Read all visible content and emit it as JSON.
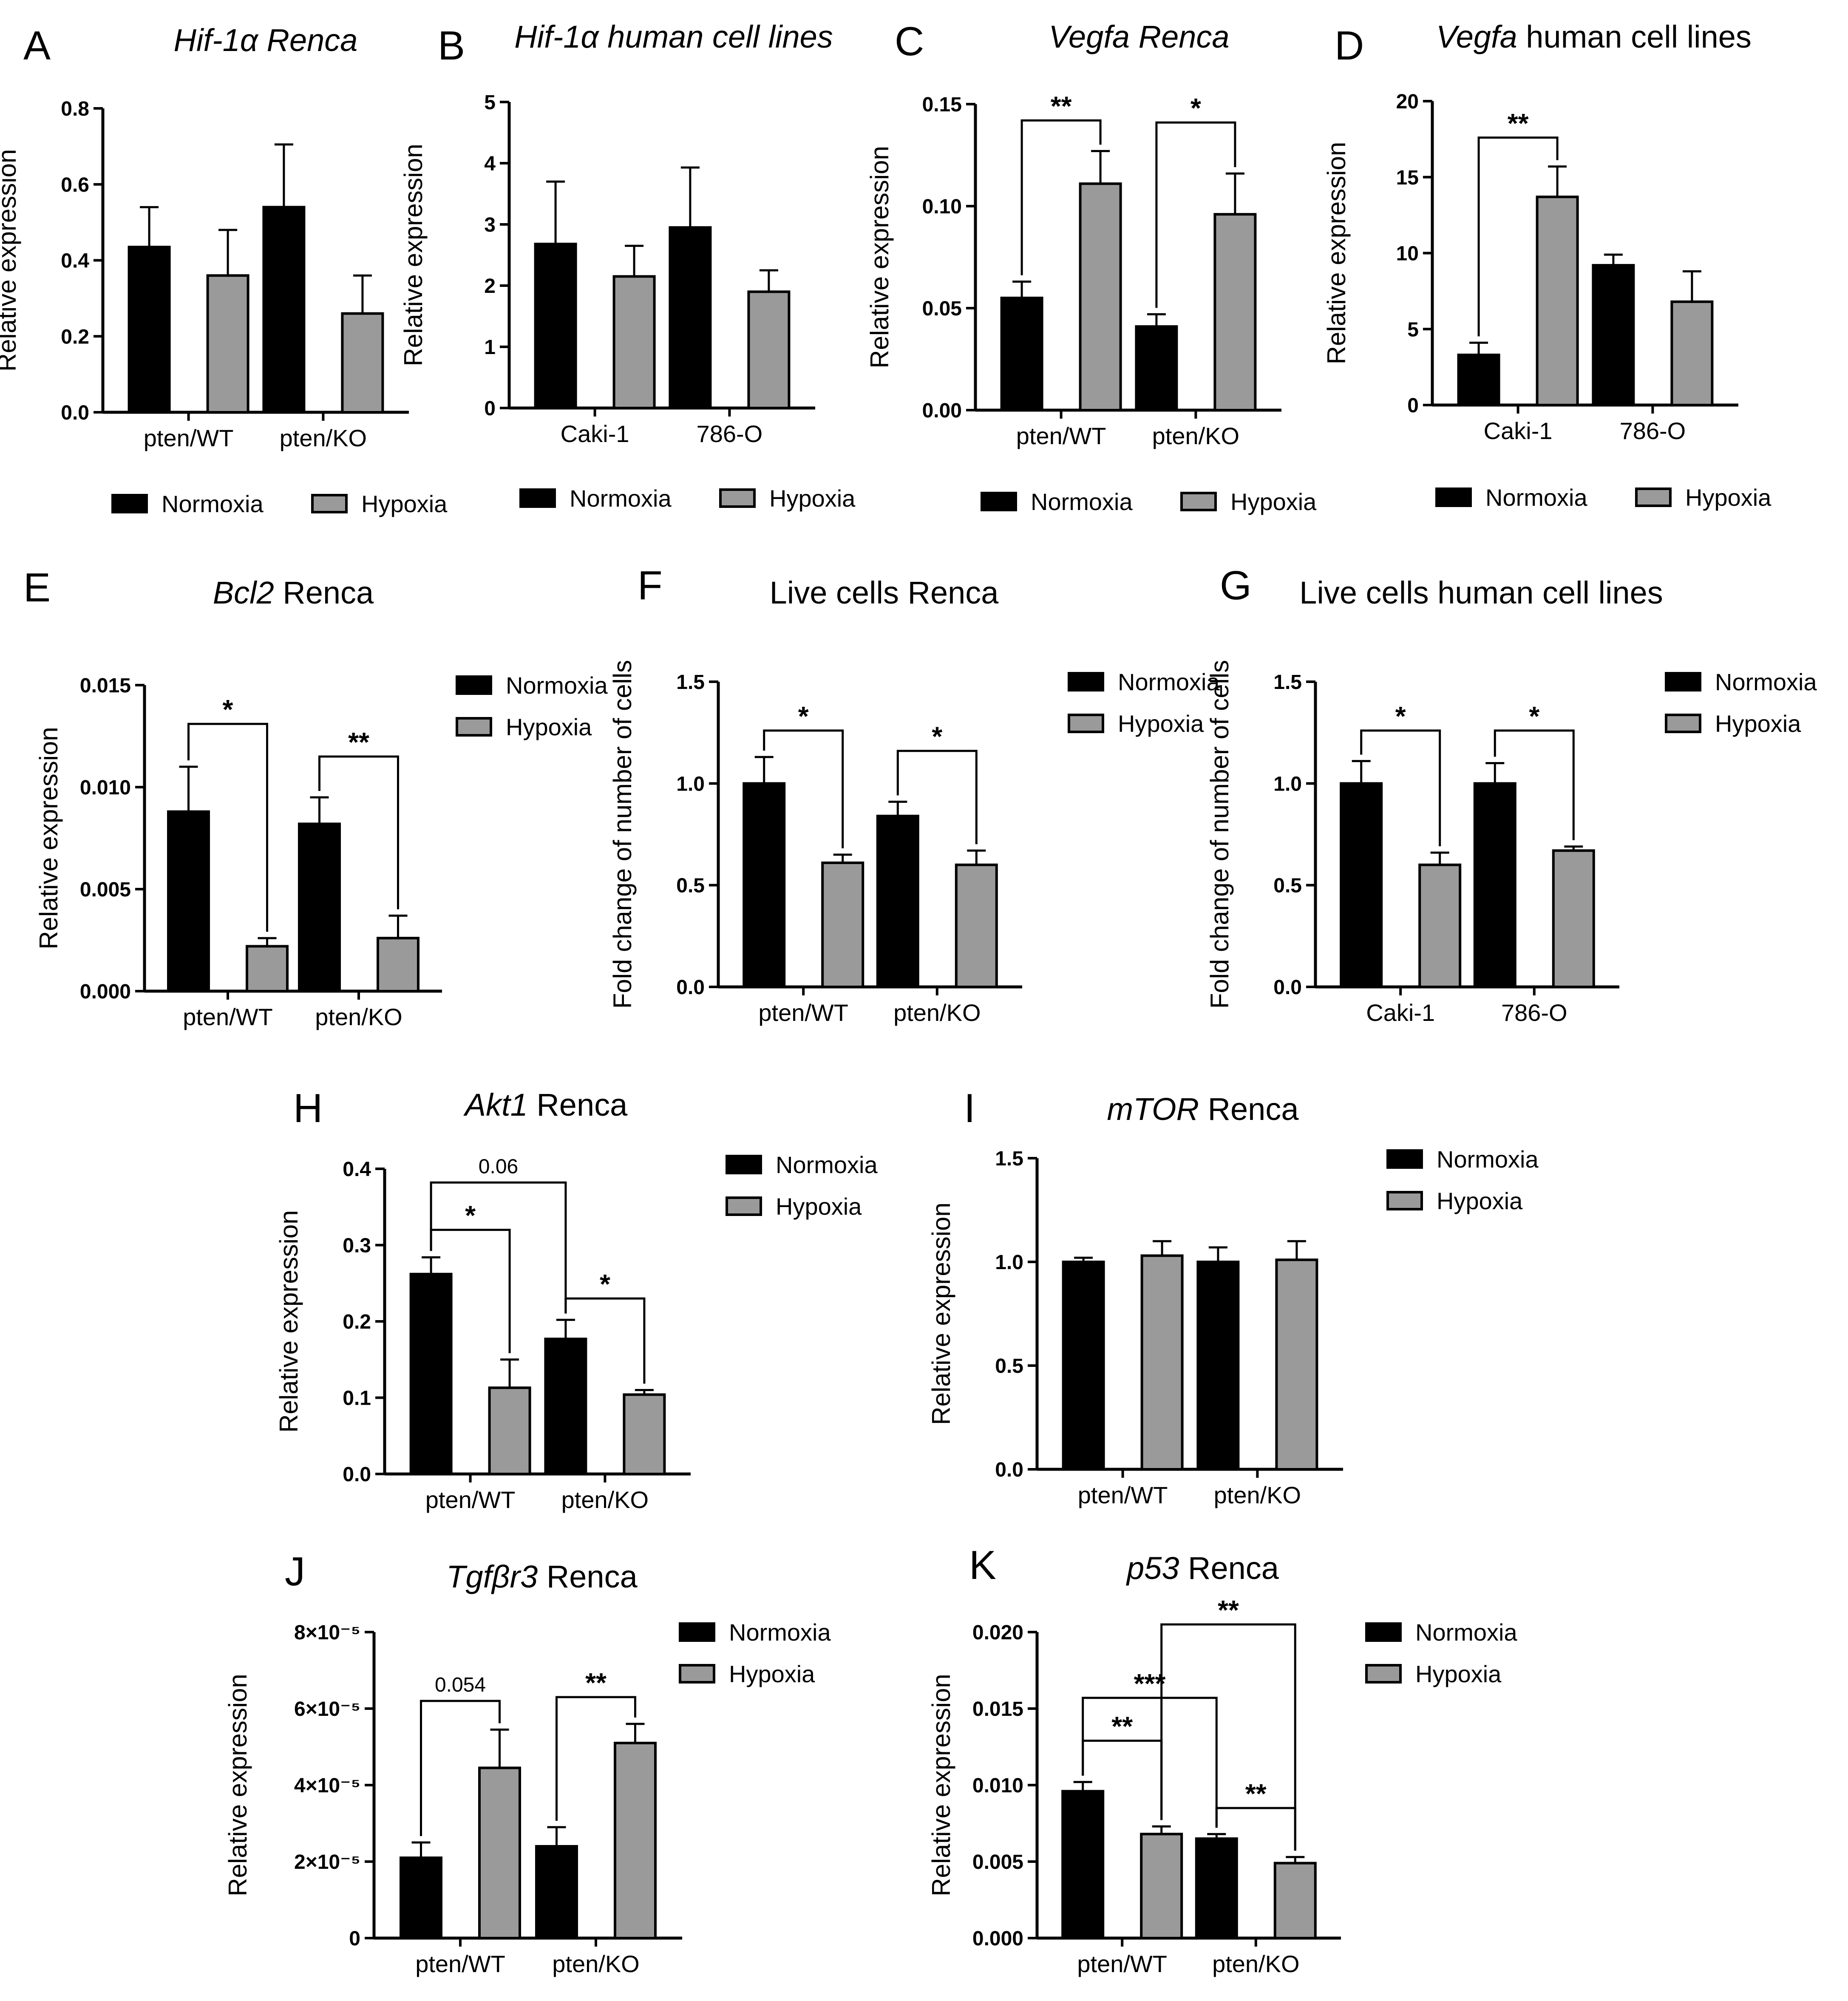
{
  "colors": {
    "normoxia": "#000000",
    "hypoxia": "#9a9a9a",
    "axis": "#000000"
  },
  "legend_labels": {
    "normoxia": "Normoxia",
    "hypoxia": "Hypoxia"
  },
  "chart_data": [
    {
      "id": "A",
      "type": "bar",
      "title": [
        "Hif-1α Renca",
        ""
      ],
      "ylabel": "Relative expression",
      "categories": [
        "pten/WT",
        "pten/KO"
      ],
      "ylim": [
        0,
        0.8
      ],
      "yticks": [
        "0.0",
        "0.2",
        "0.4",
        "0.6",
        "0.8"
      ],
      "series": [
        {
          "name": "Normoxia",
          "values": [
            0.435,
            0.54
          ],
          "errors": [
            0.105,
            0.165
          ]
        },
        {
          "name": "Hypoxia",
          "values": [
            0.36,
            0.26
          ],
          "errors": [
            0.12,
            0.1
          ]
        }
      ],
      "legend": "bottom",
      "significance": []
    },
    {
      "id": "B",
      "type": "bar",
      "title": [
        "Hif-1α human cell lines",
        ""
      ],
      "ylabel": "Relative expression",
      "categories": [
        "Caki-1",
        "786-O"
      ],
      "ylim": [
        0,
        5
      ],
      "yticks": [
        "0",
        "1",
        "2",
        "3",
        "4",
        "5"
      ],
      "series": [
        {
          "name": "Normoxia",
          "values": [
            2.68,
            2.95
          ],
          "errors": [
            1.02,
            0.98
          ]
        },
        {
          "name": "Hypoxia",
          "values": [
            2.15,
            1.9
          ],
          "errors": [
            0.5,
            0.35
          ]
        }
      ],
      "legend": "bottom",
      "significance": []
    },
    {
      "id": "C",
      "type": "bar",
      "title": [
        "Vegfa Renca",
        ""
      ],
      "ylabel": "Relative expression",
      "categories": [
        "pten/WT",
        "pten/KO"
      ],
      "ylim": [
        0,
        0.15
      ],
      "yticks": [
        "0.00",
        "0.05",
        "0.10",
        "0.15"
      ],
      "series": [
        {
          "name": "Normoxia",
          "values": [
            0.055,
            0.041
          ],
          "errors": [
            0.008,
            0.006
          ]
        },
        {
          "name": "Hypoxia",
          "values": [
            0.111,
            0.096
          ],
          "errors": [
            0.016,
            0.02
          ]
        }
      ],
      "legend": "bottom",
      "significance": [
        {
          "from": [
            0,
            0
          ],
          "to": [
            0,
            1
          ],
          "bracket": 0.142,
          "label": "**"
        },
        {
          "from": [
            1,
            0
          ],
          "to": [
            1,
            1
          ],
          "bracket": 0.141,
          "label": "*"
        }
      ]
    },
    {
      "id": "D",
      "type": "bar",
      "title": [
        "Vegfa",
        " human cell lines"
      ],
      "ylabel": "Relative expression",
      "categories": [
        "Caki-1",
        "786-O"
      ],
      "ylim": [
        0,
        20
      ],
      "yticks": [
        "0",
        "5",
        "10",
        "15",
        "20"
      ],
      "series": [
        {
          "name": "Normoxia",
          "values": [
            3.3,
            9.2
          ],
          "errors": [
            0.8,
            0.7
          ]
        },
        {
          "name": "Hypoxia",
          "values": [
            13.7,
            6.8
          ],
          "errors": [
            2.0,
            2.0
          ]
        }
      ],
      "legend": "bottom",
      "significance": [
        {
          "from": [
            0,
            0
          ],
          "to": [
            0,
            1
          ],
          "bracket": 17.6,
          "label": "**"
        }
      ]
    },
    {
      "id": "E",
      "type": "bar",
      "title": [
        "Bcl2",
        " Renca"
      ],
      "ylabel": "Relative expression",
      "categories": [
        "pten/WT",
        "pten/KO"
      ],
      "ylim": [
        0,
        0.015
      ],
      "yticks": [
        "0.000",
        "0.005",
        "0.010",
        "0.015"
      ],
      "series": [
        {
          "name": "Normoxia",
          "values": [
            0.0088,
            0.0082
          ],
          "errors": [
            0.0022,
            0.0013
          ]
        },
        {
          "name": "Hypoxia",
          "values": [
            0.0022,
            0.0026
          ],
          "errors": [
            0.0004,
            0.0011
          ]
        }
      ],
      "legend": "right",
      "significance": [
        {
          "from": [
            0,
            0
          ],
          "to": [
            0,
            1
          ],
          "bracket": 0.0131,
          "label": "*"
        },
        {
          "from": [
            1,
            0
          ],
          "to": [
            1,
            1
          ],
          "bracket": 0.0115,
          "label": "**"
        }
      ]
    },
    {
      "id": "F",
      "type": "bar",
      "title": [
        "Live cells Renca",
        ""
      ],
      "ylabel": "Fold change of number of cells",
      "categories": [
        "pten/WT",
        "pten/KO"
      ],
      "ylim": [
        0,
        1.5
      ],
      "yticks": [
        "0.0",
        "0.5",
        "1.0",
        "1.5"
      ],
      "series": [
        {
          "name": "Normoxia",
          "values": [
            1.0,
            0.84
          ],
          "errors": [
            0.13,
            0.07
          ]
        },
        {
          "name": "Hypoxia",
          "values": [
            0.61,
            0.6
          ],
          "errors": [
            0.04,
            0.07
          ]
        }
      ],
      "legend": "right",
      "significance": [
        {
          "from": [
            0,
            0
          ],
          "to": [
            0,
            1
          ],
          "bracket": 1.26,
          "label": "*"
        },
        {
          "from": [
            1,
            0
          ],
          "to": [
            1,
            1
          ],
          "bracket": 1.16,
          "label": "*"
        }
      ]
    },
    {
      "id": "G",
      "type": "bar",
      "title": [
        "Live cells human cell lines",
        ""
      ],
      "ylabel": "Fold change of number of cells",
      "categories": [
        "Caki-1",
        "786-O"
      ],
      "ylim": [
        0,
        1.5
      ],
      "yticks": [
        "0.0",
        "0.5",
        "1.0",
        "1.5"
      ],
      "series": [
        {
          "name": "Normoxia",
          "values": [
            1.0,
            1.0
          ],
          "errors": [
            0.11,
            0.1
          ]
        },
        {
          "name": "Hypoxia",
          "values": [
            0.6,
            0.67
          ],
          "errors": [
            0.06,
            0.02
          ]
        }
      ],
      "legend": "right",
      "significance": [
        {
          "from": [
            0,
            0
          ],
          "to": [
            0,
            1
          ],
          "bracket": 1.26,
          "label": "*"
        },
        {
          "from": [
            1,
            0
          ],
          "to": [
            1,
            1
          ],
          "bracket": 1.26,
          "label": "*"
        }
      ]
    },
    {
      "id": "H",
      "type": "bar",
      "title": [
        "Akt1",
        " Renca"
      ],
      "ylabel": "Relative expression",
      "categories": [
        "pten/WT",
        "pten/KO"
      ],
      "ylim": [
        0,
        0.4
      ],
      "yticks": [
        "0.0",
        "0.1",
        "0.2",
        "0.3",
        "0.4"
      ],
      "series": [
        {
          "name": "Normoxia",
          "values": [
            0.262,
            0.177
          ],
          "errors": [
            0.022,
            0.025
          ]
        },
        {
          "name": "Hypoxia",
          "values": [
            0.113,
            0.104
          ],
          "errors": [
            0.037,
            0.006
          ]
        }
      ],
      "legend": "right",
      "significance": [
        {
          "from": [
            0,
            0
          ],
          "to": [
            1,
            0
          ],
          "bracket": 0.382,
          "label": "0.06"
        },
        {
          "from": [
            0,
            0
          ],
          "to": [
            0,
            1
          ],
          "bracket": 0.32,
          "label": "*"
        },
        {
          "from": [
            1,
            0
          ],
          "to": [
            1,
            1
          ],
          "bracket": 0.23,
          "label": "*"
        }
      ]
    },
    {
      "id": "I",
      "type": "bar",
      "title": [
        "mTOR",
        " Renca"
      ],
      "ylabel": "Relative expression",
      "categories": [
        "pten/WT",
        "pten/KO"
      ],
      "ylim": [
        0,
        1.5
      ],
      "yticks": [
        "0.0",
        "0.5",
        "1.0",
        "1.5"
      ],
      "series": [
        {
          "name": "Normoxia",
          "values": [
            1.0,
            1.0
          ],
          "errors": [
            0.02,
            0.07
          ]
        },
        {
          "name": "Hypoxia",
          "values": [
            1.03,
            1.01
          ],
          "errors": [
            0.07,
            0.09
          ]
        }
      ],
      "legend": "right",
      "significance": []
    },
    {
      "id": "J",
      "type": "bar",
      "title": [
        "Tgfβr3",
        " Renca"
      ],
      "ylabel": "Relative expression",
      "categories": [
        "pten/WT",
        "pten/KO"
      ],
      "ylim": [
        0,
        8e-05
      ],
      "yticks": [
        "0",
        "2×10⁻⁵",
        "4×10⁻⁵",
        "6×10⁻⁵",
        "8×10⁻⁵"
      ],
      "series": [
        {
          "name": "Normoxia",
          "values": [
            2.1e-05,
            2.4e-05
          ],
          "errors": [
            4e-06,
            5e-06
          ]
        },
        {
          "name": "Hypoxia",
          "values": [
            4.45e-05,
            5.1e-05
          ],
          "errors": [
            1e-05,
            5e-06
          ]
        }
      ],
      "legend": "right",
      "significance": [
        {
          "from": [
            0,
            0
          ],
          "to": [
            0,
            1
          ],
          "bracket": 6.2e-05,
          "label": "0.054"
        },
        {
          "from": [
            1,
            0
          ],
          "to": [
            1,
            1
          ],
          "bracket": 6.3e-05,
          "label": "**"
        }
      ]
    },
    {
      "id": "K",
      "type": "bar",
      "title": [
        "p53",
        " Renca"
      ],
      "ylabel": "Relative expression",
      "categories": [
        "pten/WT",
        "pten/KO"
      ],
      "ylim": [
        0,
        0.02
      ],
      "yticks": [
        "0.000",
        "0.005",
        "0.010",
        "0.015",
        "0.020"
      ],
      "series": [
        {
          "name": "Normoxia",
          "values": [
            0.0096,
            0.0065
          ],
          "errors": [
            0.0006,
            0.0003
          ]
        },
        {
          "name": "Hypoxia",
          "values": [
            0.0068,
            0.0049
          ],
          "errors": [
            0.0005,
            0.0004
          ]
        }
      ],
      "legend": "right",
      "significance": [
        {
          "from": [
            0,
            1
          ],
          "to": [
            1,
            1
          ],
          "bracket": 0.0205,
          "label": "**"
        },
        {
          "from": [
            0,
            0
          ],
          "to": [
            1,
            0
          ],
          "bracket": 0.0157,
          "label": "***"
        },
        {
          "from": [
            0,
            0
          ],
          "to": [
            0,
            1
          ],
          "bracket": 0.0129,
          "label": "**"
        },
        {
          "from": [
            1,
            0
          ],
          "to": [
            1,
            1
          ],
          "bracket": 0.0085,
          "label": "**"
        }
      ]
    }
  ]
}
